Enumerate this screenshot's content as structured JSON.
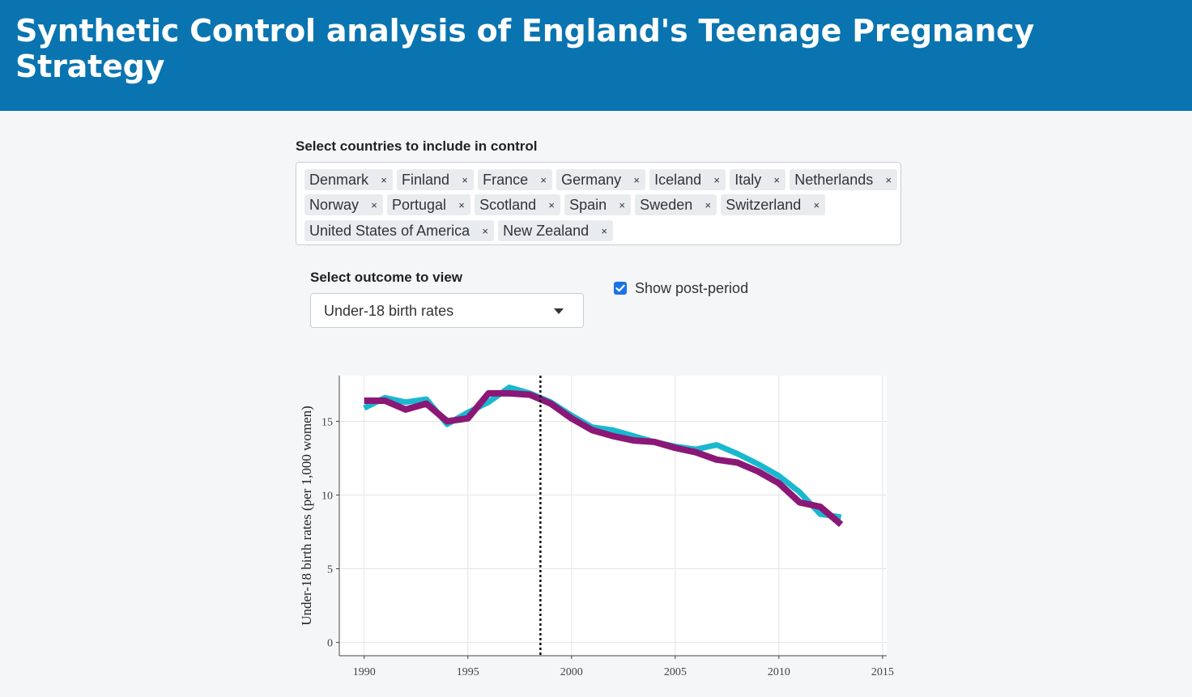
{
  "header": {
    "title": "Synthetic Control analysis of England's Teenage Pregnancy Strategy"
  },
  "countries": {
    "label": "Select countries to include in control",
    "rows": [
      [
        "Denmark",
        "Finland",
        "France",
        "Germany",
        "Iceland",
        "Italy",
        "Netherlands"
      ],
      [
        "Norway",
        "Portugal",
        "Scotland",
        "Spain",
        "Sweden",
        "Switzerland"
      ],
      [
        "United States of America",
        "New Zealand"
      ]
    ],
    "remove_glyph": "×"
  },
  "outcome": {
    "label": "Select outcome to view",
    "selected": "Under-18 birth rates"
  },
  "post_period": {
    "label": "Show post-period",
    "checked": true
  },
  "colors": {
    "header_bg": "#0a74b0",
    "england": "#1ab8cf",
    "synthetic": "#8b1877",
    "checkbox": "#1a73e8"
  },
  "chart_data": {
    "type": "line",
    "ylabel": "Under-18 birth rates (per 1,000 women)",
    "xlabel": "",
    "xlim": [
      1988.8,
      2015.2
    ],
    "ylim": [
      -0.9,
      18.1
    ],
    "x_ticks": [
      "1990",
      "1995",
      "2000",
      "2005",
      "2010",
      "2015"
    ],
    "y_ticks": [
      "0",
      "5",
      "10",
      "15"
    ],
    "grid": true,
    "legend": "none",
    "vline_x": 1998.5,
    "x": [
      1990,
      1991,
      1992,
      1993,
      1994,
      1995,
      1996,
      1997,
      1998,
      1999,
      2000,
      2001,
      2002,
      2003,
      2004,
      2005,
      2006,
      2007,
      2008,
      2009,
      2010,
      2011,
      2012,
      2013
    ],
    "series": [
      {
        "values": [
          15.9,
          16.6,
          16.3,
          16.5,
          14.8,
          15.6,
          16.3,
          17.3,
          16.9,
          16.3,
          15.4,
          14.6,
          14.4,
          14.0,
          13.6,
          13.3,
          13.1,
          13.4,
          12.8,
          12.1,
          11.3,
          10.2,
          8.7,
          8.5
        ]
      },
      {
        "values": [
          16.4,
          16.4,
          15.8,
          16.2,
          15.0,
          15.2,
          16.9,
          16.9,
          16.8,
          16.2,
          15.2,
          14.4,
          14.0,
          13.7,
          13.6,
          13.2,
          12.9,
          12.4,
          12.2,
          11.6,
          10.8,
          9.5,
          9.2,
          8.0
        ]
      }
    ]
  }
}
